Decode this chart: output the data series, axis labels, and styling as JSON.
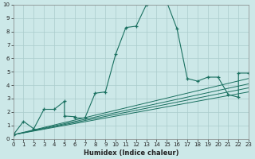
{
  "xlabel": "Humidex (Indice chaleur)",
  "bg_color": "#cce8e8",
  "grid_color": "#aacccc",
  "line_color": "#1a7060",
  "xlim": [
    0,
    23
  ],
  "ylim": [
    0,
    10
  ],
  "xticks": [
    0,
    1,
    2,
    3,
    4,
    5,
    6,
    7,
    8,
    9,
    10,
    11,
    12,
    13,
    14,
    15,
    16,
    17,
    18,
    19,
    20,
    21,
    22,
    23
  ],
  "yticks": [
    0,
    1,
    2,
    3,
    4,
    5,
    6,
    7,
    8,
    9,
    10
  ],
  "main_line": {
    "x": [
      0,
      1,
      2,
      3,
      4,
      5,
      5,
      6,
      6,
      7,
      8,
      9,
      10,
      11,
      12,
      13,
      14,
      15,
      16,
      17,
      18,
      19,
      20,
      21,
      22,
      22,
      23
    ],
    "y": [
      0.3,
      1.3,
      0.75,
      2.2,
      2.2,
      2.8,
      1.7,
      1.65,
      1.55,
      1.55,
      3.4,
      3.5,
      6.3,
      8.3,
      8.4,
      10.0,
      10.5,
      10.2,
      8.2,
      4.5,
      4.3,
      4.6,
      4.6,
      3.3,
      3.1,
      4.9,
      4.9
    ]
  },
  "straight_lines": [
    {
      "x": [
        0,
        23
      ],
      "y": [
        0.3,
        4.5
      ]
    },
    {
      "x": [
        0,
        23
      ],
      "y": [
        0.3,
        4.1
      ]
    },
    {
      "x": [
        0,
        23
      ],
      "y": [
        0.3,
        3.8
      ]
    },
    {
      "x": [
        0,
        23
      ],
      "y": [
        0.3,
        3.5
      ]
    }
  ]
}
